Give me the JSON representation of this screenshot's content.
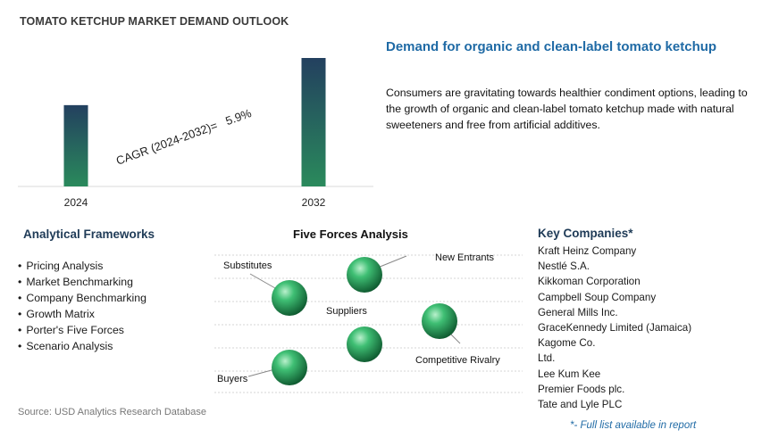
{
  "header": {
    "title": "TOMATO KETCHUP MARKET DEMAND OUTLOOK"
  },
  "chart_data": {
    "type": "bar",
    "categories": [
      "2024",
      "2032"
    ],
    "values": [
      1.0,
      1.58
    ],
    "annotation": "CAGR (2024-2032)=   5.9%",
    "colors": {
      "bar_top": "#23405f",
      "bar_bottom": "#2a8a5c",
      "baseline": "#d9d9d9"
    }
  },
  "demand": {
    "heading": "Demand for organic and clean-label tomato ketchup",
    "body": "Consumers are gravitating towards healthier condiment options, leading to the growth of organic and clean-label tomato ketchup made with natural sweeteners and free from artificial additives."
  },
  "frameworks": {
    "title": "Analytical Frameworks",
    "items": [
      "Pricing Analysis",
      "Market Benchmarking",
      "Company Benchmarking",
      "Growth Matrix",
      "Porter's Five Forces",
      "Scenario Analysis"
    ]
  },
  "five_forces": {
    "title": "Five Forces Analysis",
    "labels": {
      "substitutes": "Substitutes",
      "new_entrants": "New Entrants",
      "suppliers": "Suppliers",
      "competitive_rivalry": "Competitive Rivalry",
      "buyers": "Buyers"
    },
    "sphere_color": "#1f9a55"
  },
  "companies": {
    "title": "Key Companies*",
    "items": [
      "Kraft Heinz Company",
      "Nestlé S.A.",
      "Kikkoman Corporation",
      "Campbell Soup Company",
      "General Mills Inc.",
      "GraceKennedy Limited (Jamaica)",
      "Kagome Co.",
      "Ltd.",
      "Lee Kum Kee",
      "Premier Foods plc.",
      "Tate and Lyle PLC"
    ],
    "note": "*- Full list available in report"
  },
  "source": "Source: USD Analytics Research Database"
}
